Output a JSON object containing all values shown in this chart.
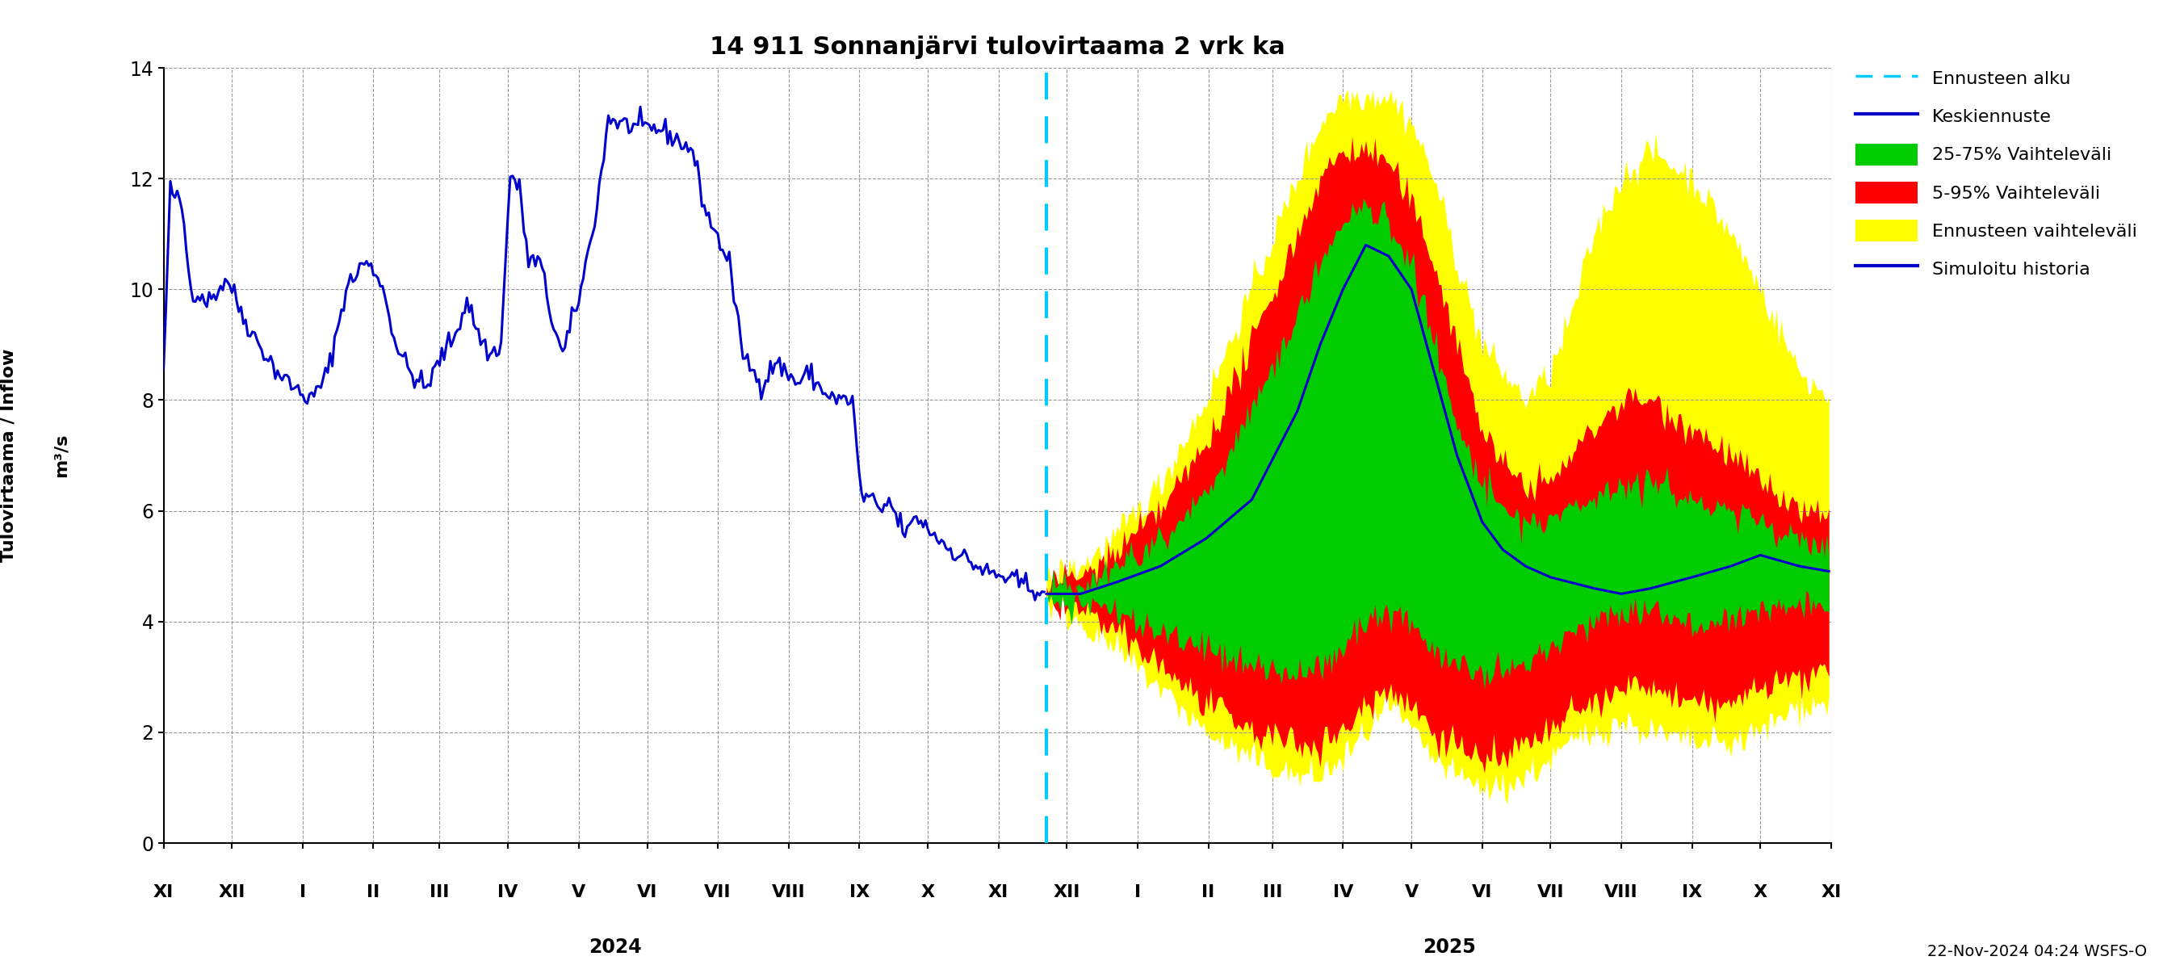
{
  "title": "14 911 Sonnanjärvi tulovirtaama 2 vrk ka",
  "ylabel1": "Tulovirtaama / Inflow",
  "ylabel2": "m³/s",
  "ylim": [
    0,
    14
  ],
  "yticks": [
    0,
    2,
    4,
    6,
    8,
    10,
    12,
    14
  ],
  "footnote": "22-Nov-2024 04:24 WSFS-O",
  "colors": {
    "history_line": "#0000cc",
    "forecast_line": "#0000cc",
    "band_25_75": "#00cc00",
    "band_5_95": "#ff0000",
    "band_ennuste": "#ffff00",
    "forecast_vline": "#00ccff"
  },
  "legend_labels": [
    "Ennusteen alku",
    "Keskiennuste",
    "25-75% Vaihteleväli",
    "5-95% Vaihteleväli",
    "Ennusteen vaihteleväli",
    "Simuloitu historia"
  ],
  "month_labels": [
    "XI",
    "XII",
    "I",
    "II",
    "III",
    "IV",
    "V",
    "VI",
    "VII",
    "VIII",
    "IX",
    "X",
    "XI",
    "XII",
    "I",
    "II",
    "III",
    "IV",
    "V",
    "VI",
    "VII",
    "VIII",
    "IX",
    "X",
    "XI"
  ],
  "background_color": "#ffffff",
  "grid_color": "#999999"
}
